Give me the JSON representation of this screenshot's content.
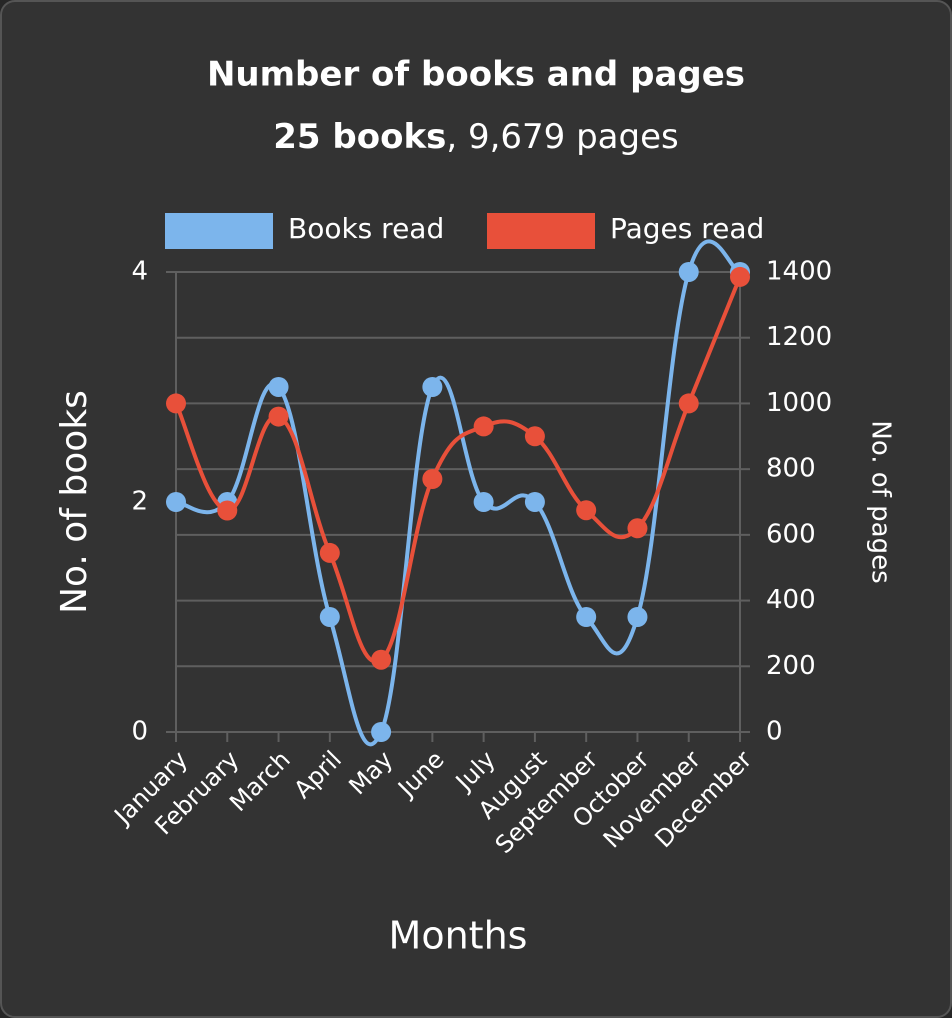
{
  "chart_data": {
    "type": "line",
    "title": "Number of books and pages",
    "subtitle_bold": "25 books",
    "subtitle": ", 9,679 pages",
    "x_label": "Months",
    "y_label": "No. of books",
    "y2_label": "No. of pages",
    "categories": [
      "January",
      "February",
      "March",
      "April",
      "May",
      "June",
      "July",
      "August",
      "September",
      "October",
      "November",
      "December"
    ],
    "series": [
      {
        "name": "Books read",
        "color": "#7cb5ec",
        "values": [
          2,
          2,
          3,
          1,
          0,
          3,
          2,
          2,
          1,
          1,
          4,
          4
        ]
      },
      {
        "name": "Pages read",
        "color": "#e8503a",
        "axis": "y2",
        "values": [
          1000,
          674,
          960,
          545,
          220,
          770,
          930,
          900,
          675,
          620,
          1000,
          1385
        ]
      }
    ],
    "ylim": [
      0,
      4
    ],
    "yticks": [
      0,
      2,
      4
    ],
    "y2lim": [
      0,
      1400
    ],
    "y2ticks": [
      0,
      200,
      400,
      600,
      800,
      1000,
      1200,
      1400
    ],
    "grid": true,
    "legend": "top"
  }
}
